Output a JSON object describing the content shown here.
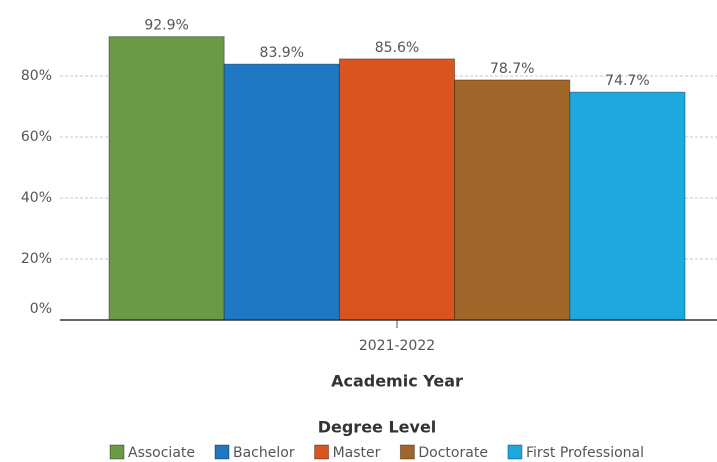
{
  "chart_data": {
    "type": "bar",
    "categories": [
      "2021-2022"
    ],
    "x_label": "Academic Year",
    "legend_title": "Degree Level",
    "series": [
      {
        "name": "Associate",
        "color": "#6a9a45",
        "values": [
          92.9
        ],
        "value_labels": [
          "92.9%"
        ]
      },
      {
        "name": "Bachelor",
        "color": "#1f78c1",
        "values": [
          83.9
        ],
        "value_labels": [
          "83.9%"
        ]
      },
      {
        "name": "Master",
        "color": "#d9541f",
        "values": [
          85.6
        ],
        "value_labels": [
          "85.6%"
        ]
      },
      {
        "name": "Doctorate",
        "color": "#a0662a",
        "values": [
          78.7
        ],
        "value_labels": [
          "78.7%"
        ]
      },
      {
        "name": "First Professional",
        "color": "#1ea8e0",
        "values": [
          74.7
        ],
        "value_labels": [
          "74.7%"
        ]
      }
    ],
    "ylim": [
      0,
      100
    ],
    "yticks": [
      {
        "value": 0,
        "label": "0%"
      },
      {
        "value": 20,
        "label": "20%"
      },
      {
        "value": 40,
        "label": "40%"
      },
      {
        "value": 60,
        "label": "60%"
      },
      {
        "value": 80,
        "label": "80%"
      }
    ],
    "grid": true,
    "legend": "bottom"
  }
}
